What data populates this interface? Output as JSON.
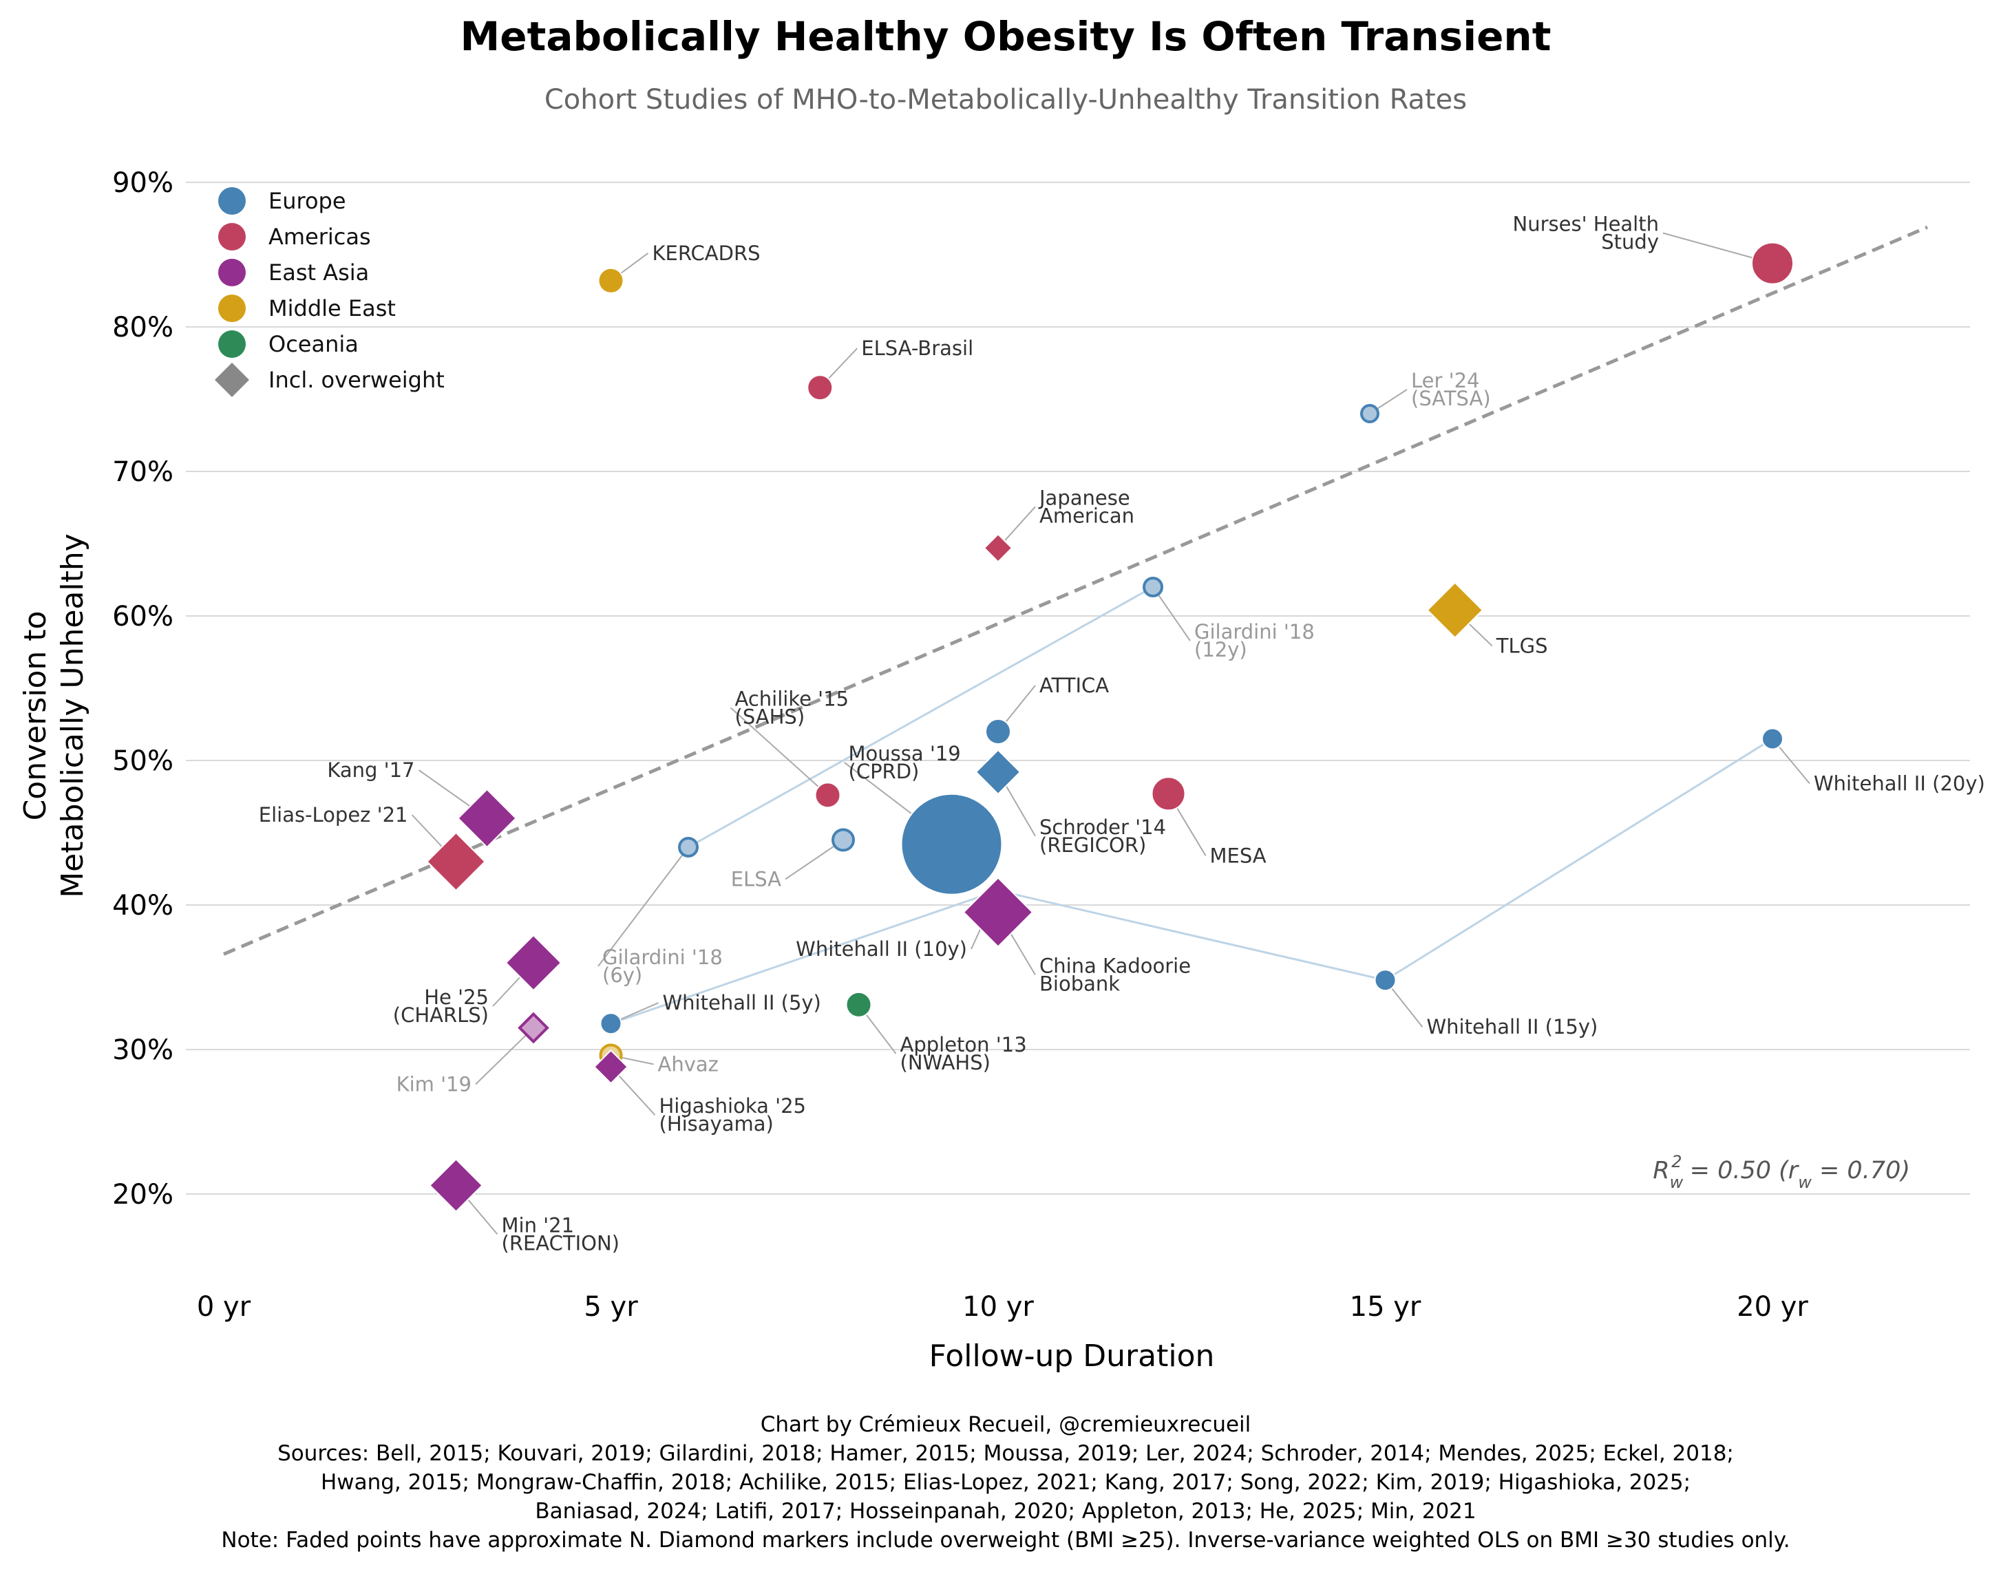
{
  "chart_data": {
    "type": "scatter",
    "title": "Metabolically Healthy Obesity Is Often Transient",
    "subtitle": "Cohort Studies of MHO-to-Metabolically-Unhealthy Transition Rates",
    "xlabel": "Follow-up Duration",
    "ylabel_lines": [
      "Conversion to",
      "Metabolically Unhealthy"
    ],
    "xlim": [
      -0.5,
      22.5
    ],
    "ylim": [
      14,
      92
    ],
    "x_ticks": [
      0,
      5,
      10,
      15,
      20
    ],
    "x_tick_labels": [
      "0 yr",
      "5 yr",
      "10 yr",
      "15 yr",
      "20 yr"
    ],
    "y_ticks": [
      20,
      30,
      40,
      50,
      60,
      70,
      80,
      90
    ],
    "y_tick_labels": [
      "20%",
      "30%",
      "40%",
      "50%",
      "60%",
      "70%",
      "80%",
      "90%"
    ],
    "grid": "horizontal",
    "regions": {
      "Europe": "#4682b4",
      "Americas": "#c0415f",
      "East Asia": "#932f8f",
      "Middle East": "#d4a017",
      "Oceania": "#2e8b57"
    },
    "legend": {
      "position": "top-left",
      "entries": [
        {
          "label": "Europe",
          "marker": "circle",
          "color": "#4682b4"
        },
        {
          "label": "Americas",
          "marker": "circle",
          "color": "#c0415f"
        },
        {
          "label": "East Asia",
          "marker": "circle",
          "color": "#932f8f"
        },
        {
          "label": "Middle East",
          "marker": "circle",
          "color": "#d4a017"
        },
        {
          "label": "Oceania",
          "marker": "circle",
          "color": "#2e8b57"
        },
        {
          "label": "Incl. overweight",
          "marker": "diamond",
          "color": "#888888"
        }
      ]
    },
    "trendline": {
      "x": [
        0,
        22
      ],
      "y": [
        36.6,
        86.9
      ],
      "color": "#999999",
      "style": "dashed"
    },
    "connectors": [
      {
        "points": [
          [
            6,
            44.0
          ],
          [
            12,
            62.0
          ]
        ]
      },
      {
        "points": [
          [
            5,
            31.8
          ],
          [
            10,
            41.0
          ],
          [
            15,
            34.8
          ],
          [
            20,
            51.5
          ]
        ]
      }
    ],
    "points": [
      {
        "label": [
          "Nurses' Health",
          "Study"
        ],
        "x": 20,
        "y": 84.4,
        "region": "Americas",
        "marker": "circle",
        "size": 30,
        "faded": false
      },
      {
        "label": [
          "KERCADRS"
        ],
        "x": 5,
        "y": 83.2,
        "region": "Middle East",
        "marker": "circle",
        "size": 18,
        "faded": false
      },
      {
        "label": [
          "ELSA-Brasil"
        ],
        "x": 7.7,
        "y": 75.8,
        "region": "Americas",
        "marker": "circle",
        "size": 18,
        "faded": false
      },
      {
        "label": [
          "Ler '24",
          "(SATSA)"
        ],
        "x": 14.8,
        "y": 74.0,
        "region": "Europe",
        "marker": "circle",
        "size": 12,
        "faded": true
      },
      {
        "label": [
          "Japanese",
          "American"
        ],
        "x": 10,
        "y": 64.7,
        "region": "Americas",
        "marker": "diamond",
        "size": 20,
        "faded": false
      },
      {
        "label": [
          "Gilardini '18",
          "(12y)"
        ],
        "x": 12,
        "y": 62.0,
        "region": "Europe",
        "marker": "circle",
        "size": 13,
        "faded": true
      },
      {
        "label": [
          "TLGS"
        ],
        "x": 15.9,
        "y": 60.4,
        "region": "Middle East",
        "marker": "diamond",
        "size": 40,
        "faded": false
      },
      {
        "label": [
          "ATTICA"
        ],
        "x": 10,
        "y": 52.0,
        "region": "Europe",
        "marker": "circle",
        "size": 18,
        "faded": false
      },
      {
        "label": [
          "Whitehall II (20y)"
        ],
        "x": 20,
        "y": 51.5,
        "region": "Europe",
        "marker": "circle",
        "size": 15,
        "faded": false
      },
      {
        "label": [
          "Schroder '14",
          "(REGICOR)"
        ],
        "x": 10,
        "y": 49.2,
        "region": "Europe",
        "marker": "diamond",
        "size": 32,
        "faded": false
      },
      {
        "label": [
          "MESA"
        ],
        "x": 12.2,
        "y": 47.7,
        "region": "Americas",
        "marker": "circle",
        "size": 24,
        "faded": false
      },
      {
        "label": [
          "Achilike '15",
          "(SAHS)"
        ],
        "x": 7.8,
        "y": 47.6,
        "region": "Americas",
        "marker": "circle",
        "size": 18,
        "faded": false
      },
      {
        "label": [
          "Kang '17"
        ],
        "x": 3.4,
        "y": 46.0,
        "region": "East Asia",
        "marker": "diamond",
        "size": 42,
        "faded": false
      },
      {
        "label": [
          "ELSA"
        ],
        "x": 8,
        "y": 44.5,
        "region": "Europe",
        "marker": "circle",
        "size": 15,
        "faded": true
      },
      {
        "label": [
          "Moussa '19",
          "(CPRD)"
        ],
        "x": 9.4,
        "y": 44.2,
        "region": "Europe",
        "marker": "circle",
        "size": 73,
        "faded": false
      },
      {
        "label": [
          "Gilardini '18",
          "(6y)"
        ],
        "x": 6,
        "y": 44.0,
        "region": "Europe",
        "marker": "circle",
        "size": 13,
        "faded": true
      },
      {
        "label": [
          "Elias-Lopez '21"
        ],
        "x": 3,
        "y": 43.0,
        "region": "Americas",
        "marker": "diamond",
        "size": 42,
        "faded": false
      },
      {
        "label": [
          "Whitehall II (10y)"
        ],
        "x": 10,
        "y": 41.0,
        "region": "Europe",
        "marker": "circle",
        "size": 14,
        "faded": false
      },
      {
        "label": [
          "China Kadoorie",
          "Biobank"
        ],
        "x": 10,
        "y": 39.5,
        "region": "East Asia",
        "marker": "diamond",
        "size": 50,
        "faded": false
      },
      {
        "label": [
          "He '25",
          "(CHARLS)"
        ],
        "x": 4,
        "y": 36.0,
        "region": "East Asia",
        "marker": "diamond",
        "size": 40,
        "faded": false
      },
      {
        "label": [
          "Whitehall II (15y)"
        ],
        "x": 15,
        "y": 34.8,
        "region": "Europe",
        "marker": "circle",
        "size": 15,
        "faded": false
      },
      {
        "label": [
          "Appleton '13",
          "(NWAHS)"
        ],
        "x": 8.2,
        "y": 33.1,
        "region": "Oceania",
        "marker": "circle",
        "size": 18,
        "faded": false
      },
      {
        "label": [
          "Whitehall II (5y)"
        ],
        "x": 5,
        "y": 31.8,
        "region": "Europe",
        "marker": "circle",
        "size": 15,
        "faded": false
      },
      {
        "label": [
          "Kim '19"
        ],
        "x": 4,
        "y": 31.5,
        "region": "East Asia",
        "marker": "diamond",
        "size": 20,
        "faded": true
      },
      {
        "label": [
          "Ahvaz"
        ],
        "x": 5,
        "y": 29.6,
        "region": "Middle East",
        "marker": "circle",
        "size": 15,
        "faded": true
      },
      {
        "label": [
          "Higashioka '25",
          "(Hisayama)"
        ],
        "x": 5,
        "y": 28.8,
        "region": "East Asia",
        "marker": "diamond",
        "size": 24,
        "faded": false
      },
      {
        "label": [
          "Min '21",
          "(REACTION)"
        ],
        "x": 3,
        "y": 20.6,
        "region": "East Asia",
        "marker": "diamond",
        "size": 38,
        "faded": false
      }
    ],
    "annotation": {
      "r2_value": "0.50",
      "r_value": "0.70"
    }
  },
  "footer": {
    "credit": "Chart by Crémieux Recueil, @cremieuxrecueil",
    "sources_1": "Sources: Bell, 2015; Kouvari, 2019; Gilardini, 2018; Hamer, 2015; Moussa, 2019; Ler, 2024; Schroder, 2014; Mendes, 2025; Eckel, 2018;",
    "sources_2": "Hwang, 2015; Mongraw-Chaffin, 2018; Achilike, 2015; Elias-Lopez, 2021; Kang, 2017; Song, 2022; Kim, 2019; Higashioka, 2025;",
    "sources_3": "Baniasad, 2024; Latifi, 2017; Hosseinpanah, 2020; Appleton, 2013; He, 2025; Min, 2021",
    "note": "Note: Faded points have approximate N. Diamond markers include overweight (BMI ≥25). Inverse-variance weighted OLS on BMI ≥30 studies only."
  }
}
